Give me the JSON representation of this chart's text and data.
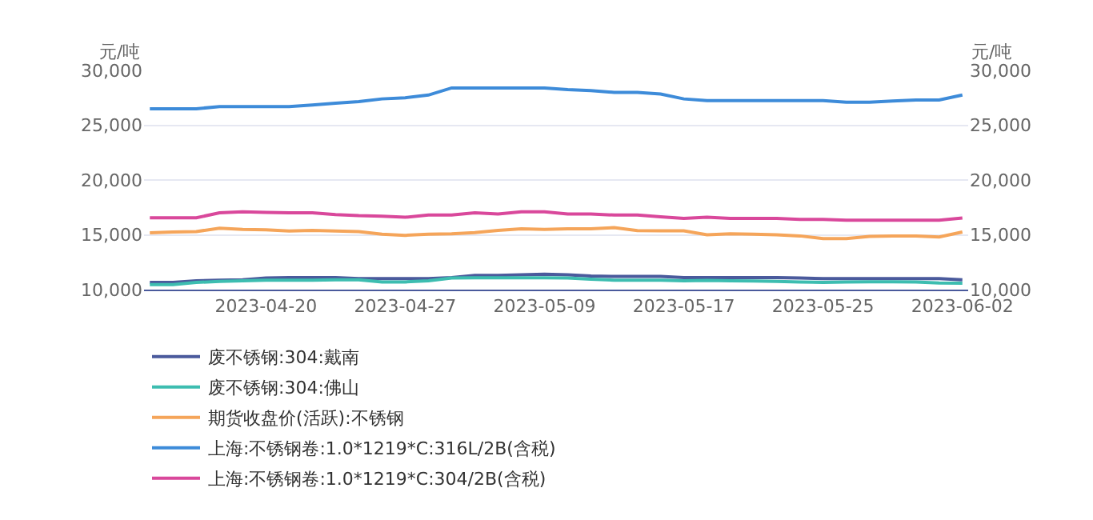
{
  "chart_data": {
    "type": "line",
    "ylabel": "元/吨",
    "y2label": "元/吨",
    "categories": [
      null,
      null,
      null,
      null,
      null,
      "2023-04-20",
      null,
      null,
      null,
      null,
      null,
      "2023-04-27",
      null,
      null,
      null,
      null,
      null,
      "2023-05-09",
      null,
      null,
      null,
      null,
      null,
      "2023-05-17",
      null,
      null,
      null,
      null,
      null,
      "2023-05-25",
      null,
      null,
      null,
      null,
      null,
      "2023-06-02"
    ],
    "ylim": [
      10000,
      30000
    ],
    "yticks": [
      {
        "value": 10000,
        "label": "10,000"
      },
      {
        "value": 15000,
        "label": "15,000"
      },
      {
        "value": 20000,
        "label": "20,000"
      },
      {
        "value": 25000,
        "label": "25,000"
      },
      {
        "value": 30000,
        "label": "30,000"
      }
    ],
    "y2lim": [
      10000,
      30000
    ],
    "y2ticks": [
      {
        "value": 10000,
        "label": "10,000"
      },
      {
        "value": 15000,
        "label": "15,000"
      },
      {
        "value": 20000,
        "label": "20,000"
      },
      {
        "value": 25000,
        "label": "25,000"
      },
      {
        "value": 30000,
        "label": "30,000"
      }
    ],
    "grid": "y",
    "legend": "bottom",
    "marker": "none",
    "line_style": "solid",
    "series": [
      {
        "name": "废不锈钢:304:戴南",
        "color": "#4a5a9c",
        "values": [
          10650,
          10650,
          10800,
          10850,
          10900,
          11050,
          11100,
          11100,
          11100,
          11000,
          11000,
          11000,
          11000,
          11100,
          11300,
          11300,
          11350,
          11400,
          11350,
          11250,
          11200,
          11200,
          11200,
          11100,
          11100,
          11100,
          11100,
          11100,
          11050,
          11000,
          11000,
          11000,
          11000,
          11000,
          11000,
          10900
        ]
      },
      {
        "name": "废不锈钢:304:佛山",
        "color": "#3dbdb0",
        "values": [
          10450,
          10450,
          10650,
          10750,
          10800,
          10850,
          10850,
          10850,
          10900,
          10900,
          10700,
          10700,
          10800,
          11050,
          11080,
          11080,
          11080,
          11080,
          11050,
          10950,
          10860,
          10860,
          10860,
          10800,
          10830,
          10800,
          10780,
          10750,
          10700,
          10650,
          10700,
          10720,
          10720,
          10700,
          10600,
          10580
        ]
      },
      {
        "name": "期货收盘价(活跃):不锈钢",
        "color": "#f5a55a",
        "values": [
          15180,
          15250,
          15300,
          15600,
          15500,
          15450,
          15350,
          15400,
          15350,
          15300,
          15050,
          14950,
          15050,
          15100,
          15200,
          15400,
          15550,
          15500,
          15550,
          15550,
          15650,
          15380,
          15360,
          15360,
          15000,
          15100,
          15050,
          15000,
          14900,
          14650,
          14650,
          14850,
          14900,
          14900,
          14800,
          15250
        ]
      },
      {
        "name": "上海:不锈钢卷:1.0*1219*C:316L/2B(含税)",
        "color": "#3d8bd9",
        "values": [
          26500,
          26500,
          26500,
          26700,
          26700,
          26700,
          26700,
          26850,
          27000,
          27150,
          27400,
          27500,
          27750,
          28400,
          28400,
          28400,
          28400,
          28400,
          28250,
          28150,
          28000,
          28000,
          27850,
          27400,
          27250,
          27250,
          27250,
          27250,
          27250,
          27250,
          27100,
          27100,
          27200,
          27300,
          27300,
          27750
        ]
      },
      {
        "name": "上海:不锈钢卷:1.0*1219*C:304/2B(含税)",
        "color": "#d9489b",
        "values": [
          16550,
          16550,
          16550,
          17000,
          17100,
          17050,
          17000,
          17000,
          16850,
          16750,
          16700,
          16600,
          16800,
          16800,
          17000,
          16900,
          17100,
          17100,
          16900,
          16900,
          16800,
          16800,
          16650,
          16500,
          16600,
          16500,
          16500,
          16500,
          16400,
          16400,
          16330,
          16330,
          16330,
          16330,
          16330,
          16530
        ]
      }
    ]
  }
}
